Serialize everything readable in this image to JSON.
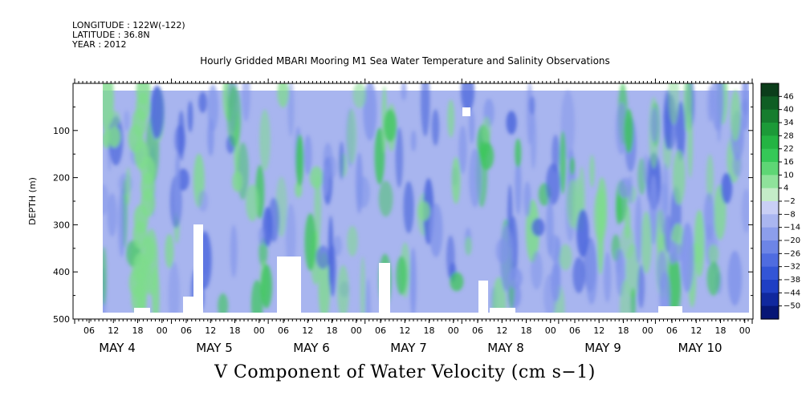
{
  "header": {
    "longitude": "LONGITUDE : 122W(-122)",
    "latitude": "LATITUDE : 36.8N",
    "year": "YEAR : 2012"
  },
  "chart_data": {
    "type": "heatmap",
    "title": "Hourly Gridded MBARI Mooring M1 Sea Water Temperature and Salinity Observations",
    "xlabel": "V Component of Water Velocity (cm s−1)",
    "ylabel": "DEPTH (m)",
    "ylim": [
      500,
      0
    ],
    "y_ticks": [
      100,
      200,
      300,
      400,
      500
    ],
    "x_hour_ticks": [
      "06",
      "12",
      "18",
      "00",
      "06",
      "12",
      "18",
      "00",
      "06",
      "12",
      "18",
      "00",
      "06",
      "12",
      "18",
      "00",
      "06",
      "12",
      "18",
      "00",
      "06",
      "12",
      "18",
      "00",
      "06",
      "12",
      "18",
      "00"
    ],
    "x_day_labels": [
      "MAY  4",
      "MAY  5",
      "MAY  6",
      "MAY  7",
      "MAY  8",
      "MAY  9",
      "MAY  10"
    ],
    "colorbar_levels": [
      "46",
      "40",
      "34",
      "28",
      "22",
      "16",
      "10",
      "4",
      "−2",
      "−8",
      "−14",
      "−20",
      "−26",
      "−32",
      "−38",
      "−44",
      "−50"
    ],
    "colorbar_colors": [
      "#0b3d1a",
      "#0f5e24",
      "#167d2e",
      "#1c9a38",
      "#24b443",
      "#35c857",
      "#5ed675",
      "#8fe29b",
      "#c4ecc8",
      "#c9cff5",
      "#aab6f0",
      "#8c9eec",
      "#6d85e6",
      "#4f6ce0",
      "#3355d6",
      "#1f3fc4",
      "#10289e",
      "#061676"
    ],
    "field_pattern": {
      "background": "#a8b5ef",
      "blue": "#7f93ea",
      "dark_blue": "#4a65dc",
      "green": "#7edc8c",
      "dark_green": "#3cc65a"
    }
  }
}
